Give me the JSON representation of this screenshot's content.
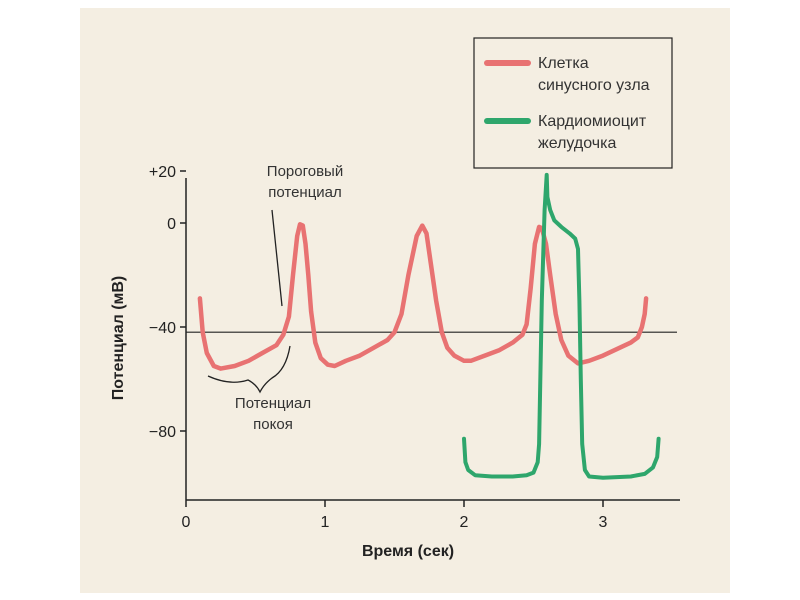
{
  "chart_data": {
    "type": "line",
    "xlabel": "Время (сек)",
    "ylabel": "Потенциал (мВ)",
    "xlim": [
      0,
      3.5
    ],
    "ylim": [
      -100,
      20
    ],
    "x_ticks": [
      0,
      1,
      2,
      3
    ],
    "y_ticks": [
      {
        "value": 20,
        "label": "+20"
      },
      {
        "value": 0,
        "label": "0"
      },
      {
        "value": -40,
        "label": "−40"
      },
      {
        "value": -80,
        "label": "−80"
      }
    ],
    "threshold": -42,
    "legend_position": "top-right",
    "series": [
      {
        "name": "Клетка синусного узла",
        "color": "#e87272",
        "points": [
          [
            0.1,
            -29
          ],
          [
            0.12,
            -42
          ],
          [
            0.15,
            -50
          ],
          [
            0.2,
            -55
          ],
          [
            0.25,
            -56
          ],
          [
            0.35,
            -55
          ],
          [
            0.45,
            -53
          ],
          [
            0.55,
            -50
          ],
          [
            0.65,
            -47
          ],
          [
            0.7,
            -43
          ],
          [
            0.74,
            -36
          ],
          [
            0.77,
            -20
          ],
          [
            0.8,
            -5
          ],
          [
            0.82,
            -0.5
          ],
          [
            0.84,
            -1
          ],
          [
            0.86,
            -8
          ],
          [
            0.88,
            -20
          ],
          [
            0.9,
            -34
          ],
          [
            0.93,
            -46
          ],
          [
            0.97,
            -52
          ],
          [
            1.02,
            -54.5
          ],
          [
            1.07,
            -55
          ],
          [
            1.15,
            -53
          ],
          [
            1.25,
            -51
          ],
          [
            1.35,
            -48
          ],
          [
            1.45,
            -45
          ],
          [
            1.5,
            -42
          ],
          [
            1.55,
            -35
          ],
          [
            1.6,
            -20
          ],
          [
            1.66,
            -5
          ],
          [
            1.7,
            -1
          ],
          [
            1.73,
            -4
          ],
          [
            1.76,
            -15
          ],
          [
            1.8,
            -30
          ],
          [
            1.84,
            -42
          ],
          [
            1.88,
            -48
          ],
          [
            1.93,
            -51
          ],
          [
            2.0,
            -53
          ],
          [
            2.05,
            -53
          ],
          [
            2.15,
            -51
          ],
          [
            2.25,
            -49
          ],
          [
            2.35,
            -46
          ],
          [
            2.42,
            -43
          ],
          [
            2.45,
            -39
          ],
          [
            2.48,
            -25
          ],
          [
            2.51,
            -8
          ],
          [
            2.54,
            -1.5
          ],
          [
            2.56,
            -2
          ],
          [
            2.59,
            -8
          ],
          [
            2.62,
            -20
          ],
          [
            2.66,
            -35
          ],
          [
            2.7,
            -45
          ],
          [
            2.75,
            -51
          ],
          [
            2.82,
            -54
          ],
          [
            2.9,
            -53
          ],
          [
            3.0,
            -51
          ],
          [
            3.1,
            -48.5
          ],
          [
            3.2,
            -46
          ],
          [
            3.25,
            -44
          ],
          [
            3.28,
            -40
          ],
          [
            3.3,
            -35
          ],
          [
            3.31,
            -29
          ]
        ]
      },
      {
        "name": "Кардиомиоцит желудочка",
        "color": "#2ea66c",
        "points": [
          [
            2.0,
            -83
          ],
          [
            2.01,
            -92
          ],
          [
            2.03,
            -95
          ],
          [
            2.08,
            -97
          ],
          [
            2.2,
            -97.5
          ],
          [
            2.35,
            -97.5
          ],
          [
            2.45,
            -97
          ],
          [
            2.5,
            -96
          ],
          [
            2.53,
            -92
          ],
          [
            2.54,
            -85
          ],
          [
            2.56,
            -30
          ],
          [
            2.58,
            5
          ],
          [
            2.595,
            18.5
          ],
          [
            2.6,
            10
          ],
          [
            2.62,
            5
          ],
          [
            2.65,
            1
          ],
          [
            2.7,
            -1.5
          ],
          [
            2.76,
            -4
          ],
          [
            2.8,
            -6
          ],
          [
            2.82,
            -10
          ],
          [
            2.83,
            -30
          ],
          [
            2.84,
            -60
          ],
          [
            2.85,
            -85
          ],
          [
            2.87,
            -95
          ],
          [
            2.9,
            -97.5
          ],
          [
            3.0,
            -98
          ],
          [
            3.2,
            -97.5
          ],
          [
            3.3,
            -96.5
          ],
          [
            3.36,
            -94
          ],
          [
            3.39,
            -90
          ],
          [
            3.4,
            -83
          ]
        ]
      }
    ]
  },
  "annotations": {
    "threshold_label_line1": "Пороговый",
    "threshold_label_line2": "потенциал",
    "rest_label_line1": "Потенциал",
    "rest_label_line2": "покоя"
  }
}
